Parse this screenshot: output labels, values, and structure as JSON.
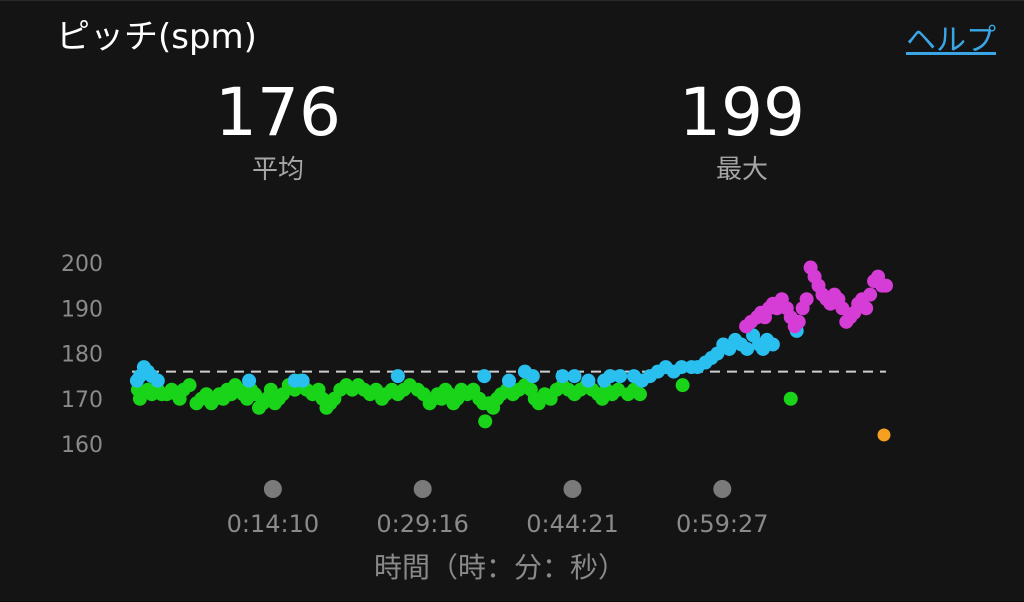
{
  "header": {
    "title": "ピッチ(spm)",
    "help_label": "ヘルプ"
  },
  "stats": {
    "average_value": "176",
    "average_label": "平均",
    "max_value": "199",
    "max_label": "最大"
  },
  "colors": {
    "background": "#141414",
    "green": "#19d419",
    "blue": "#29c0f0",
    "magenta": "#d63cd6",
    "orange": "#f5a020",
    "reference_line": "#cfcfcf",
    "help_link": "#3aa6e6"
  },
  "chart_data": {
    "type": "scatter",
    "title": "ピッチ(spm)",
    "xlabel": "時間（時：分：秒）",
    "ylabel": "",
    "ylim": [
      160,
      200
    ],
    "yticks": [
      200,
      190,
      180,
      170,
      160
    ],
    "xticks": [
      {
        "minute": 14.2,
        "label": "0:14:10"
      },
      {
        "minute": 29.3,
        "label": "0:29:16"
      },
      {
        "minute": 44.4,
        "label": "0:44:21"
      },
      {
        "minute": 59.5,
        "label": "0:59:27"
      }
    ],
    "average": 176,
    "max": 199,
    "grid": false,
    "series": [
      {
        "color": "green",
        "points": [
          [
            0.6,
            172
          ],
          [
            0.8,
            170
          ],
          [
            1.6,
            172
          ],
          [
            2.0,
            171
          ],
          [
            2.6,
            172
          ],
          [
            3.0,
            171
          ],
          [
            3.5,
            171
          ],
          [
            4.0,
            172
          ],
          [
            4.5,
            171
          ],
          [
            4.8,
            170
          ],
          [
            5.2,
            172
          ],
          [
            5.8,
            173
          ],
          [
            6.5,
            169
          ],
          [
            7.0,
            170
          ],
          [
            7.5,
            171
          ],
          [
            8.0,
            169
          ],
          [
            8.4,
            170
          ],
          [
            8.8,
            171
          ],
          [
            9.2,
            170
          ],
          [
            9.6,
            172
          ],
          [
            10.0,
            171
          ],
          [
            10.4,
            173
          ],
          [
            10.8,
            172
          ],
          [
            11.2,
            171
          ],
          [
            11.6,
            170
          ],
          [
            12.0,
            172
          ],
          [
            12.4,
            171
          ],
          [
            12.8,
            168
          ],
          [
            13.2,
            169
          ],
          [
            13.6,
            170
          ],
          [
            14.0,
            172
          ],
          [
            14.4,
            169
          ],
          [
            14.8,
            170
          ],
          [
            15.2,
            171
          ],
          [
            15.8,
            173
          ],
          [
            16.4,
            172
          ],
          [
            17.0,
            174
          ],
          [
            17.6,
            172
          ],
          [
            18.2,
            171
          ],
          [
            18.8,
            172
          ],
          [
            19.2,
            170
          ],
          [
            19.6,
            168
          ],
          [
            20.0,
            169
          ],
          [
            20.4,
            170
          ],
          [
            21.0,
            172
          ],
          [
            21.6,
            173
          ],
          [
            22.2,
            172
          ],
          [
            22.8,
            173
          ],
          [
            23.4,
            172
          ],
          [
            24.0,
            171
          ],
          [
            24.6,
            172
          ],
          [
            25.2,
            170
          ],
          [
            25.6,
            171
          ],
          [
            26.2,
            172
          ],
          [
            26.8,
            171
          ],
          [
            27.4,
            172
          ],
          [
            28.0,
            173
          ],
          [
            28.8,
            172
          ],
          [
            29.4,
            171
          ],
          [
            30.0,
            169
          ],
          [
            30.4,
            170
          ],
          [
            30.8,
            171
          ],
          [
            31.2,
            170
          ],
          [
            31.6,
            172
          ],
          [
            32.0,
            171
          ],
          [
            32.4,
            169
          ],
          [
            32.8,
            170
          ],
          [
            33.2,
            172
          ],
          [
            33.8,
            171
          ],
          [
            34.4,
            172
          ],
          [
            35.0,
            170
          ],
          [
            35.4,
            169
          ],
          [
            35.6,
            165
          ],
          [
            36.0,
            169
          ],
          [
            36.4,
            168
          ],
          [
            36.8,
            170
          ],
          [
            37.2,
            171
          ],
          [
            37.8,
            172
          ],
          [
            38.4,
            171
          ],
          [
            39.0,
            172
          ],
          [
            39.6,
            173
          ],
          [
            40.2,
            172
          ],
          [
            40.6,
            170
          ],
          [
            41.0,
            169
          ],
          [
            41.6,
            171
          ],
          [
            42.2,
            170
          ],
          [
            42.8,
            172
          ],
          [
            43.4,
            173
          ],
          [
            44.0,
            172
          ],
          [
            44.6,
            171
          ],
          [
            45.2,
            172
          ],
          [
            45.8,
            173
          ],
          [
            46.4,
            172
          ],
          [
            47.0,
            171
          ],
          [
            47.4,
            170
          ],
          [
            47.8,
            172
          ],
          [
            48.4,
            171
          ],
          [
            49.0,
            172
          ],
          [
            50.0,
            171
          ],
          [
            50.6,
            172
          ],
          [
            51.2,
            171
          ],
          [
            55.5,
            173
          ],
          [
            66.4,
            170
          ]
        ]
      },
      {
        "color": "blue",
        "points": [
          [
            0.5,
            174
          ],
          [
            0.8,
            175
          ],
          [
            1.2,
            177
          ],
          [
            1.6,
            176
          ],
          [
            2.0,
            175
          ],
          [
            2.6,
            174
          ],
          [
            11.8,
            174
          ],
          [
            16.4,
            174
          ],
          [
            17.2,
            174
          ],
          [
            26.8,
            175
          ],
          [
            35.5,
            175
          ],
          [
            38.0,
            174
          ],
          [
            39.6,
            176
          ],
          [
            40.4,
            175
          ],
          [
            43.4,
            175
          ],
          [
            44.6,
            175
          ],
          [
            46.0,
            174
          ],
          [
            47.6,
            174
          ],
          [
            48.2,
            175
          ],
          [
            49.2,
            175
          ],
          [
            50.6,
            175
          ],
          [
            51.4,
            174
          ],
          [
            52.2,
            175
          ],
          [
            53.0,
            176
          ],
          [
            53.8,
            177
          ],
          [
            54.6,
            176
          ],
          [
            55.4,
            177
          ],
          [
            56.4,
            177
          ],
          [
            57.0,
            177
          ],
          [
            57.8,
            178
          ],
          [
            58.4,
            179
          ],
          [
            59.0,
            180
          ],
          [
            59.6,
            182
          ],
          [
            60.2,
            181
          ],
          [
            60.8,
            183
          ],
          [
            61.4,
            182
          ],
          [
            62.0,
            181
          ],
          [
            62.6,
            184
          ],
          [
            63.2,
            182
          ],
          [
            63.6,
            181
          ],
          [
            64.0,
            183
          ],
          [
            64.6,
            182
          ],
          [
            67.0,
            185
          ]
        ]
      },
      {
        "color": "magenta",
        "points": [
          [
            61.9,
            186
          ],
          [
            62.4,
            187
          ],
          [
            63.0,
            188
          ],
          [
            63.4,
            189
          ],
          [
            63.8,
            188
          ],
          [
            64.2,
            190
          ],
          [
            64.6,
            191
          ],
          [
            65.0,
            190
          ],
          [
            65.5,
            192
          ],
          [
            66.0,
            190
          ],
          [
            66.4,
            188
          ],
          [
            66.8,
            186
          ],
          [
            67.2,
            187
          ],
          [
            67.6,
            190
          ],
          [
            68.0,
            192
          ],
          [
            68.4,
            199
          ],
          [
            68.8,
            197
          ],
          [
            69.2,
            195
          ],
          [
            69.6,
            193
          ],
          [
            70.0,
            192
          ],
          [
            70.4,
            191
          ],
          [
            70.8,
            193
          ],
          [
            71.2,
            192
          ],
          [
            71.6,
            190
          ],
          [
            72.0,
            187
          ],
          [
            72.4,
            188
          ],
          [
            72.8,
            189
          ],
          [
            73.2,
            191
          ],
          [
            73.6,
            192
          ],
          [
            74.0,
            190
          ],
          [
            74.4,
            193
          ],
          [
            74.8,
            196
          ],
          [
            75.2,
            197
          ],
          [
            75.6,
            195
          ],
          [
            76.0,
            195
          ]
        ]
      },
      {
        "color": "orange",
        "points": [
          [
            75.8,
            162
          ]
        ]
      }
    ]
  }
}
